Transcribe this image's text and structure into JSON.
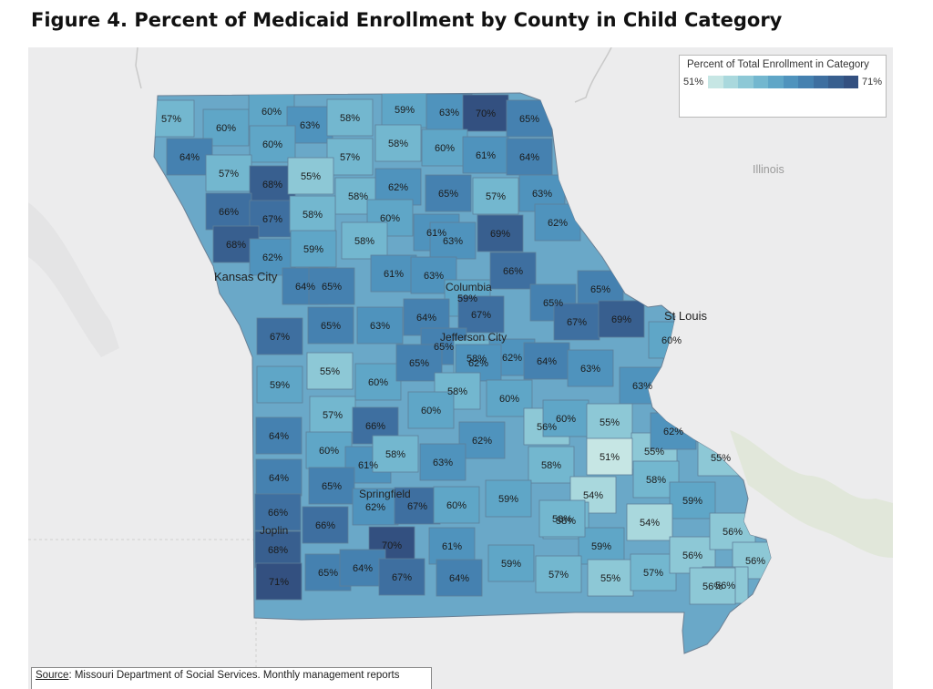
{
  "title": "Figure 4. Percent of Medicaid Enrollment by County in Child Category",
  "legend": {
    "title": "Percent of Total Enrollment in Category",
    "min_label": "51%",
    "max_label": "71%",
    "ramp_colors": [
      "#c6e6e4",
      "#a9d8dd",
      "#8dc8d6",
      "#73b7cf",
      "#5fa6c7",
      "#4f93bd",
      "#4581b0",
      "#3e6fa0",
      "#385f8f",
      "#335080"
    ]
  },
  "map": {
    "state": "Missouri",
    "neighbor_label": "Illinois",
    "city_labels": [
      "Kansas City",
      "St Louis",
      "Columbia",
      "Jefferson City",
      "Springfield",
      "Joplin"
    ]
  },
  "county_values": [
    "57%",
    "60%",
    "60%",
    "63%",
    "58%",
    "59%",
    "63%",
    "70%",
    "65%",
    "64%",
    "60%",
    "57%",
    "58%",
    "60%",
    "61%",
    "64%",
    "57%",
    "68%",
    "55%",
    "58%",
    "62%",
    "65%",
    "57%",
    "63%",
    "66%",
    "67%",
    "58%",
    "60%",
    "61%",
    "69%",
    "68%",
    "62%",
    "59%",
    "58%",
    "63%",
    "62%",
    "61%",
    "63%",
    "66%",
    "64%",
    "65%",
    "59%",
    "65%",
    "65%",
    "65%",
    "63%",
    "64%",
    "67%",
    "67%",
    "69%",
    "67%",
    "65%",
    "58%",
    "60%",
    "59%",
    "55%",
    "60%",
    "65%",
    "62%",
    "62%",
    "64%",
    "63%",
    "63%",
    "58%",
    "60%",
    "56%",
    "57%",
    "66%",
    "60%",
    "60%",
    "55%",
    "64%",
    "62%",
    "55%",
    "62%",
    "60%",
    "61%",
    "58%",
    "63%",
    "58%",
    "51%",
    "64%",
    "65%",
    "62%",
    "67%",
    "60%",
    "59%",
    "58%",
    "54%",
    "55%",
    "59%",
    "66%",
    "66%",
    "58%",
    "54%",
    "68%",
    "70%",
    "61%",
    "59%",
    "58%",
    "71%",
    "65%",
    "64%",
    "67%",
    "64%",
    "59%",
    "57%",
    "55%",
    "57%",
    "56%",
    "56%",
    "56%",
    "56%",
    "56%"
  ],
  "source": {
    "label": "Source",
    "text": ": Missouri Department of Social Services. Monthly management reports"
  }
}
